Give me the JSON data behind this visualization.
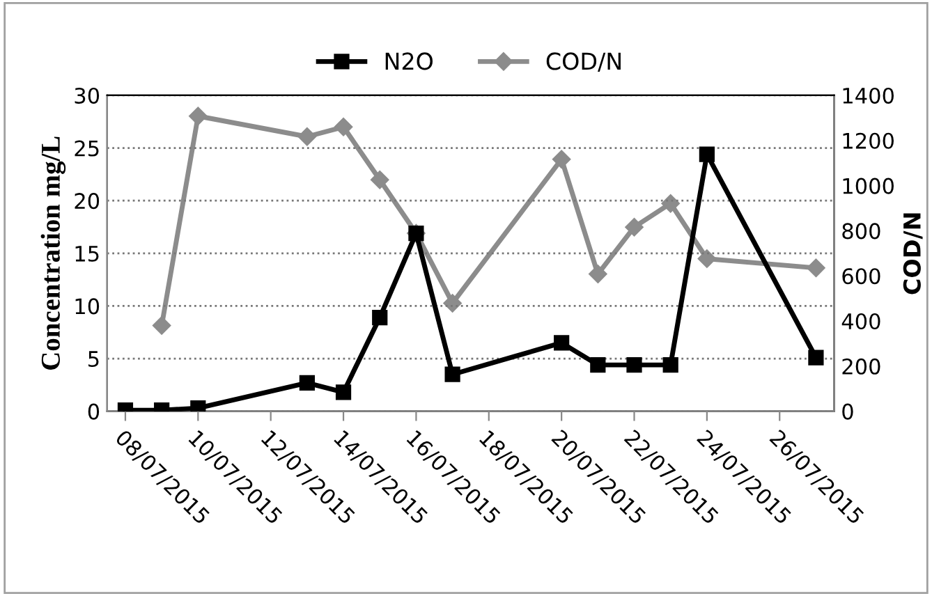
{
  "chart_data": {
    "type": "line",
    "ylabel": "Concentration mg/L",
    "y2label": "COD/N",
    "xlim": [
      "2015-07-07T12:00",
      "2015-07-27T12:00"
    ],
    "xticks": [
      {
        "value": "2015-07-08",
        "label": "08/07/2015"
      },
      {
        "value": "2015-07-10",
        "label": "10/07/2015"
      },
      {
        "value": "2015-07-12",
        "label": "12/07/2015"
      },
      {
        "value": "2015-07-14",
        "label": "14/07/2015"
      },
      {
        "value": "2015-07-16",
        "label": "16/07/2015"
      },
      {
        "value": "2015-07-18",
        "label": "18/07/2015"
      },
      {
        "value": "2015-07-20",
        "label": "20/07/2015"
      },
      {
        "value": "2015-07-22",
        "label": "22/07/2015"
      },
      {
        "value": "2015-07-24",
        "label": "24/07/2015"
      },
      {
        "value": "2015-07-26",
        "label": "26/07/2015"
      }
    ],
    "ylim": [
      0,
      30
    ],
    "yticks": [
      0,
      5,
      10,
      15,
      20,
      25,
      30
    ],
    "y2lim": [
      0,
      1400
    ],
    "y2ticks": [
      0,
      200,
      400,
      600,
      800,
      1000,
      1200,
      1400
    ],
    "grid": "y",
    "legend": "top",
    "line_style": "solid",
    "series": [
      {
        "name": "N2O",
        "color": "#000000",
        "marker": "square",
        "x": [
          "2015-07-08",
          "2015-07-09",
          "2015-07-10",
          "2015-07-13",
          "2015-07-14",
          "2015-07-15",
          "2015-07-16",
          "2015-07-17",
          "2015-07-20",
          "2015-07-21",
          "2015-07-22",
          "2015-07-23",
          "2015-07-24",
          "2015-07-27"
        ],
        "values": [
          0.1,
          0.1,
          0.3,
          2.7,
          1.8,
          8.9,
          16.9,
          3.5,
          6.5,
          4.4,
          4.4,
          4.4,
          24.4,
          5.1
        ]
      },
      {
        "name": "COD/N",
        "color": "#8c8c8c",
        "marker": "diamond",
        "axis": "y2",
        "x": [
          "2015-07-09",
          "2015-07-10",
          "2015-07-13",
          "2015-07-14",
          "2015-07-15",
          "2015-07-16",
          "2015-07-17",
          "2015-07-20",
          "2015-07-21",
          "2015-07-22",
          "2015-07-23",
          "2015-07-24",
          "2015-07-27"
        ],
        "values": [
          380,
          1308,
          1217,
          1260,
          1026,
          789,
          479,
          1117,
          608,
          816,
          921,
          676,
          635
        ]
      }
    ]
  }
}
